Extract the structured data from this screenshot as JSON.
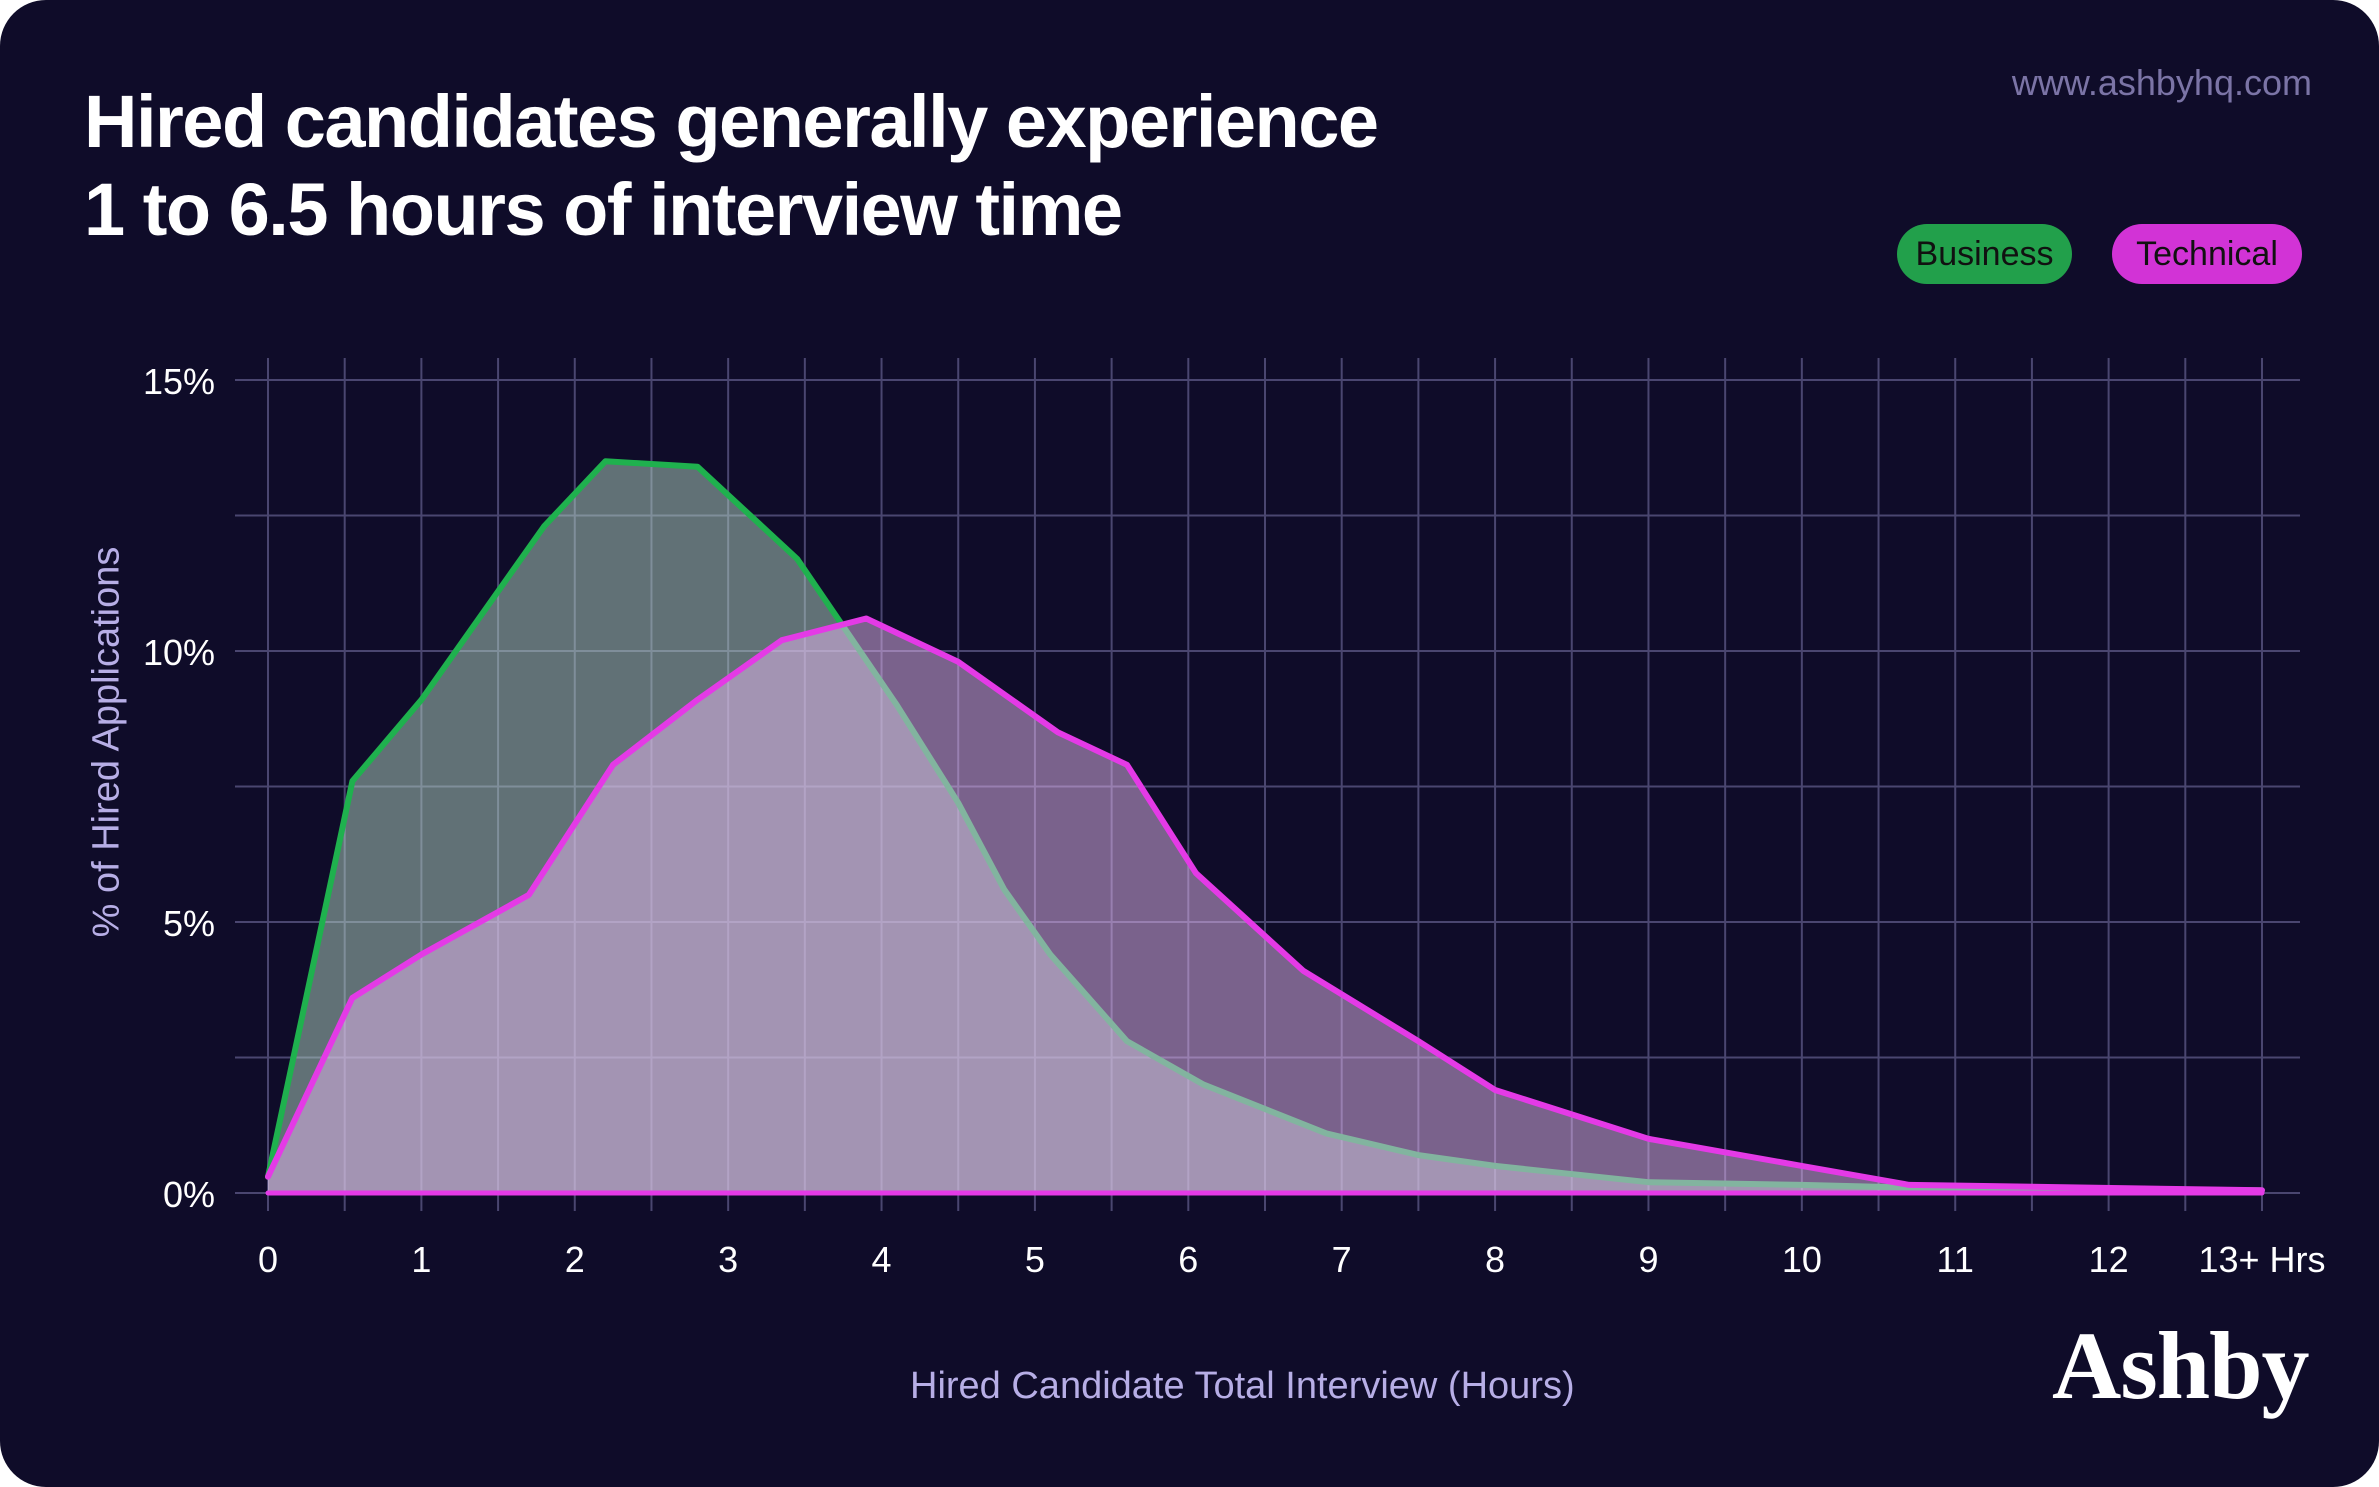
{
  "header": {
    "title_line1": "Hired candidates generally experience",
    "title_line2": "1 to 6.5 hours of interview time",
    "url": "www.ashbyhq.com"
  },
  "brand": {
    "logo_text": "Ashby"
  },
  "colors": {
    "background": "#0f0c29",
    "business": "#22a04b",
    "business_line": "#1fb14e",
    "technical": "#d233d6",
    "technical_line": "#e43ae6",
    "grid": "#4a4670",
    "axis_label": "#b7aee6"
  },
  "chart_data": {
    "type": "area",
    "title": "Hired candidates generally experience 1 to 6.5 hours of interview time",
    "xlabel": "Hired Candidate Total Interview (Hours)",
    "ylabel": "% of Hired Applications",
    "x_tick_labels": [
      "0",
      "1",
      "2",
      "3",
      "4",
      "5",
      "6",
      "7",
      "8",
      "9",
      "10",
      "11",
      "12",
      "13+ Hrs"
    ],
    "y_tick_labels": [
      "0%",
      "5%",
      "10%",
      "15%"
    ],
    "xlim": [
      0,
      13
    ],
    "ylim": [
      0,
      15
    ],
    "grid": true,
    "legend_position": "top-right",
    "series": [
      {
        "name": "Business",
        "x": [
          0,
          0.55,
          1.0,
          1.8,
          2.2,
          2.8,
          3.45,
          4.1,
          4.5,
          4.8,
          5.1,
          5.6,
          6.1,
          6.9,
          7.5,
          8.0,
          9.0,
          10.0,
          10.7,
          13.0
        ],
        "values": [
          0.3,
          7.6,
          9.1,
          12.3,
          13.5,
          13.4,
          11.7,
          9.0,
          7.2,
          5.6,
          4.4,
          2.8,
          2.0,
          1.1,
          0.7,
          0.5,
          0.2,
          0.15,
          0.1,
          0.05
        ]
      },
      {
        "name": "Technical",
        "x": [
          0,
          0.55,
          1.0,
          1.7,
          2.25,
          2.8,
          3.35,
          3.9,
          4.5,
          5.15,
          5.6,
          6.05,
          6.75,
          7.5,
          8.0,
          9.0,
          10.0,
          10.7,
          13.0
        ],
        "values": [
          0.3,
          3.6,
          4.4,
          5.5,
          7.9,
          9.1,
          10.2,
          10.6,
          9.8,
          8.5,
          7.9,
          5.9,
          4.1,
          2.8,
          1.9,
          1.0,
          0.5,
          0.15,
          0.05
        ]
      }
    ]
  }
}
